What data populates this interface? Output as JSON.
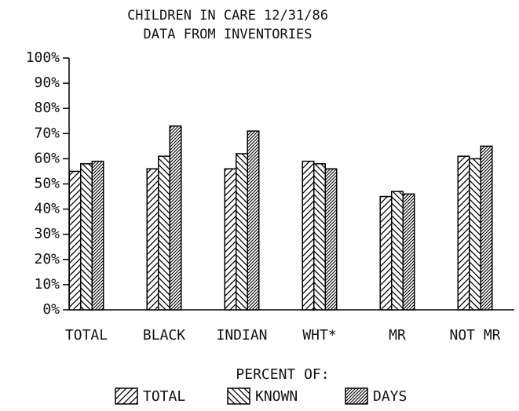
{
  "chart_data": {
    "type": "bar",
    "title": [
      "CHILDREN IN CARE 12/31/86",
      "DATA FROM INVENTORIES"
    ],
    "categories": [
      "TOTAL",
      "BLACK",
      "INDIAN",
      "WHT*",
      "MR",
      "NOT MR"
    ],
    "series": [
      {
        "name": "TOTAL",
        "color": "#000000",
        "values": [
          55,
          56,
          56,
          59,
          45,
          61
        ]
      },
      {
        "name": "KNOWN",
        "color": "#000000",
        "values": [
          58,
          61,
          62,
          58,
          47,
          60
        ]
      },
      {
        "name": "DAYS",
        "color": "#000000",
        "values": [
          59,
          73,
          71,
          56,
          46,
          65
        ]
      }
    ],
    "legend_title": "PERCENT OF:",
    "ylim": [
      0,
      100
    ],
    "yticks": [
      {
        "value": 0,
        "label": "0%"
      },
      {
        "value": 10,
        "label": "10%"
      },
      {
        "value": 20,
        "label": "20%"
      },
      {
        "value": 30,
        "label": "30%"
      },
      {
        "value": 40,
        "label": "40%"
      },
      {
        "value": 50,
        "label": "50%"
      },
      {
        "value": 60,
        "label": "60%"
      },
      {
        "value": 70,
        "label": "70%"
      },
      {
        "value": 80,
        "label": "80%"
      },
      {
        "value": 90,
        "label": "90%"
      },
      {
        "value": 100,
        "label": "100%"
      }
    ],
    "grid": false
  }
}
